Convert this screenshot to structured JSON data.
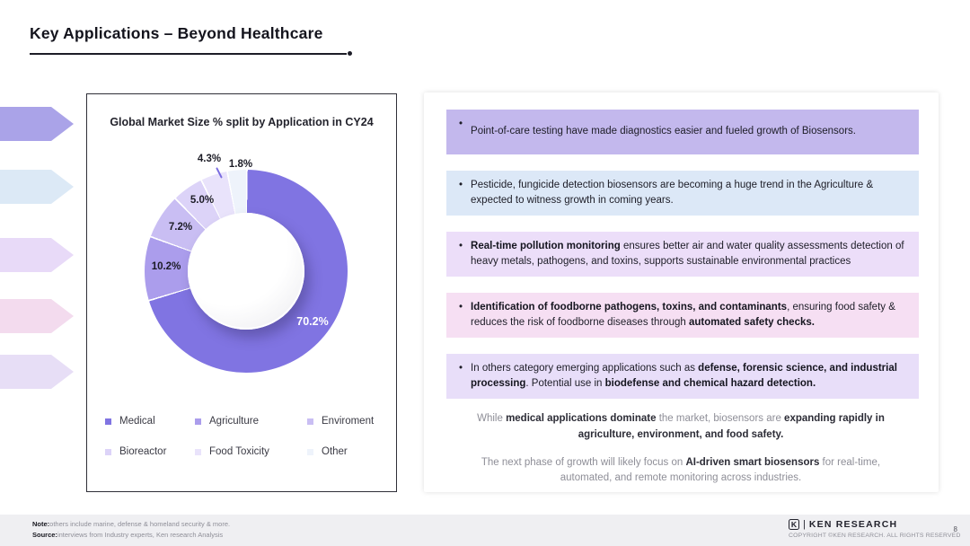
{
  "slide": {
    "title": "Key Applications – Beyond Healthcare"
  },
  "chart_data": {
    "type": "pie",
    "donut": true,
    "title": "Global Market Size % split by Application in CY24",
    "categories": [
      "Medical",
      "Agriculture",
      "Enviroment",
      "Bioreactor",
      "Food Toxicity",
      "Other"
    ],
    "values": [
      70.2,
      10.2,
      7.2,
      5.0,
      4.3,
      1.8
    ],
    "labels": [
      "70.2%",
      "10.2%",
      "7.2%",
      "5.0%",
      "4.3%",
      "1.8%"
    ],
    "colors": [
      "#8074e2",
      "#ab9dec",
      "#c9bef3",
      "#dcd3f8",
      "#e9e3fb",
      "#eef3fb"
    ],
    "legend_position": "bottom"
  },
  "chevron_colors": [
    "#aaa3e8",
    "#dce9f6",
    "#e8daf8",
    "#f3dbee",
    "#e7def6"
  ],
  "ui": {
    "bullet_char": "•"
  },
  "bullets": [
    {
      "bg": "#c3b8ed",
      "segments": [
        {
          "text": "Point-of-care testing have made diagnostics easier and fueled growth of Biosensors.",
          "bold": false
        }
      ]
    },
    {
      "bg": "#dce8f7",
      "segments": [
        {
          "text": "Pesticide, fungicide detection biosensors are becoming a huge trend in the Agriculture & expected to witness growth in coming years.",
          "bold": false
        }
      ]
    },
    {
      "bg": "#ecdef9",
      "segments": [
        {
          "text": "Real-time pollution monitoring",
          "bold": true
        },
        {
          "text": " ensures better air and water quality assessments detection of heavy metals, pathogens, and toxins, supports sustainable environmental practices",
          "bold": false
        }
      ]
    },
    {
      "bg": "#f6dff3",
      "segments": [
        {
          "text": "Identification of foodborne pathogens, toxins, and contaminants",
          "bold": true
        },
        {
          "text": ", ensuring food safety & reduces the risk of foodborne diseases through ",
          "bold": false
        },
        {
          "text": "automated safety checks.",
          "bold": true
        }
      ]
    },
    {
      "bg": "#e8def9",
      "segments": [
        {
          "text": "In others category emerging applications such as ",
          "bold": false
        },
        {
          "text": "defense, forensic science, and industrial processing",
          "bold": true
        },
        {
          "text": ". Potential use in ",
          "bold": false
        },
        {
          "text": "biodefense and chemical hazard detection.",
          "bold": true
        }
      ]
    }
  ],
  "summary": [
    {
      "segments": [
        {
          "text": "While ",
          "bold": false
        },
        {
          "text": "medical applications dominate",
          "bold": true
        },
        {
          "text": " the market, biosensors are ",
          "bold": false
        },
        {
          "text": "expanding rapidly in agriculture, environment, and food safety.",
          "bold": true
        }
      ]
    },
    {
      "segments": [
        {
          "text": "The next phase of growth will likely focus on ",
          "bold": false
        },
        {
          "text": "AI-driven smart biosensors",
          "bold": true
        },
        {
          "text": " for real-time, automated, and remote monitoring across industries.",
          "bold": false
        }
      ]
    }
  ],
  "footer": {
    "note_label": "Note:",
    "note_text": "others include marine, defense & homeland security & more.",
    "source_label": "Source:",
    "source_text": "interviews from Industry experts, Ken research Analysis",
    "logo_letter": "K",
    "brand_divider": "|",
    "brand": "KEN RESEARCH",
    "copyright": "COPYRIGHT ©KEN RESEARCH. ALL RIGHTS RESERVED",
    "page": "8"
  }
}
